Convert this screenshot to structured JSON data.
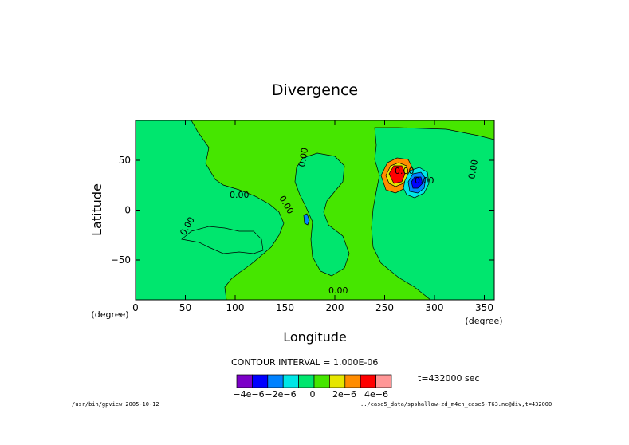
{
  "chart_data": {
    "type": "heatmap",
    "title": "Divergence",
    "xlabel": "Longitude",
    "ylabel": "Latitude",
    "x_unit": "(degree)",
    "y_unit": "(degree)",
    "xlim": [
      0,
      360
    ],
    "ylim": [
      -90,
      90
    ],
    "x_ticks": [
      0,
      50,
      100,
      150,
      200,
      250,
      300,
      350
    ],
    "y_ticks": [
      -50,
      0,
      50
    ],
    "y_tick_labels": [
      "−50",
      "0",
      "50"
    ],
    "contour_labels": [
      "0.00",
      "0.00",
      "0.00",
      "0.00",
      "0.00",
      "0.00",
      "0.00",
      "0.00"
    ],
    "contour_interval": "CONTOUR INTERVAL = 1.000E-06",
    "time_label": "t=432000 sec",
    "colorbar": {
      "colors": [
        "#7c00c8",
        "#0000ff",
        "#0082ff",
        "#00e6e6",
        "#00e66e",
        "#46e600",
        "#e6e600",
        "#ff8c00",
        "#ff0000",
        "#ff9696"
      ],
      "tick_labels": [
        "−4e−6",
        "−2e−6",
        "0",
        "2e−6",
        "4e−6"
      ],
      "tick_values": [
        -4e-06,
        -2e-06,
        0,
        2e-06,
        4e-06
      ]
    },
    "field_background": "#46e600",
    "features": [
      {
        "name": "positive-center",
        "lon": 262,
        "lat": 35,
        "sign": "positive"
      },
      {
        "name": "negative-center",
        "lon": 280,
        "lat": 25,
        "sign": "negative"
      }
    ]
  },
  "footer": {
    "left": "/usr/bin/gpview  2005-10-12",
    "right": "../case5_data/spshallow-zd_m4cn_case5-T63.nc@div,t=432000"
  }
}
